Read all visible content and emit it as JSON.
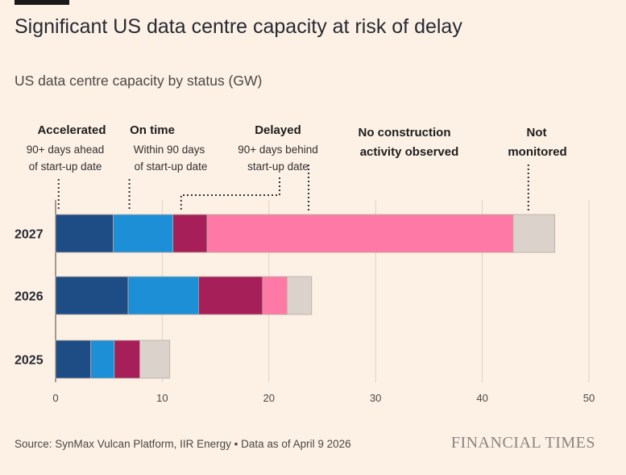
{
  "header": {
    "title": "Significant US data centre capacity at risk of delay",
    "subtitle": "US data centre capacity by status (GW)"
  },
  "footer": {
    "source": "SynMax Vulcan Platform, IIR Energy • Data as of April 9 2026",
    "brand": "FINANCIAL TIMES"
  },
  "chart_data": {
    "type": "bar",
    "orientation": "horizontal",
    "stacked": true,
    "categories": [
      "2027",
      "2026",
      "2025"
    ],
    "series": [
      {
        "name": "Accelerated",
        "values": [
          5.4,
          6.8,
          3.3
        ],
        "color": "#1e4d86"
      },
      {
        "name": "On time",
        "values": [
          5.6,
          6.6,
          2.2
        ],
        "color": "#1c8fd6"
      },
      {
        "name": "Delayed",
        "values": [
          3.2,
          6.0,
          2.4
        ],
        "color": "#a71f58"
      },
      {
        "name": "No construction activity observed",
        "values": [
          28.7,
          2.3,
          0.0
        ],
        "color": "#ff79a6"
      },
      {
        "name": "Not monitored",
        "values": [
          3.9,
          2.3,
          2.8
        ],
        "color": "#dbd3cb"
      }
    ],
    "xlim": [
      0,
      50
    ],
    "xticks": [
      0,
      10,
      20,
      30,
      40,
      50
    ],
    "grid": true,
    "annotations": [
      {
        "series": "Accelerated",
        "label": "Accelerated",
        "note_lines": [
          "90+ days ahead",
          "of start-up date"
        ]
      },
      {
        "series": "On time",
        "label": "On time",
        "note_lines": [
          "Within 90 days",
          "of start-up date"
        ]
      },
      {
        "series": "Delayed",
        "label": "Delayed",
        "note_lines": [
          "90+ days behind",
          "start-up date"
        ]
      },
      {
        "series": "No construction activity observed",
        "label_lines": [
          "No construction",
          "activity observed"
        ],
        "note_lines": []
      },
      {
        "series": "Not monitored",
        "label_lines": [
          "Not",
          "monitored"
        ],
        "note_lines": []
      }
    ]
  }
}
